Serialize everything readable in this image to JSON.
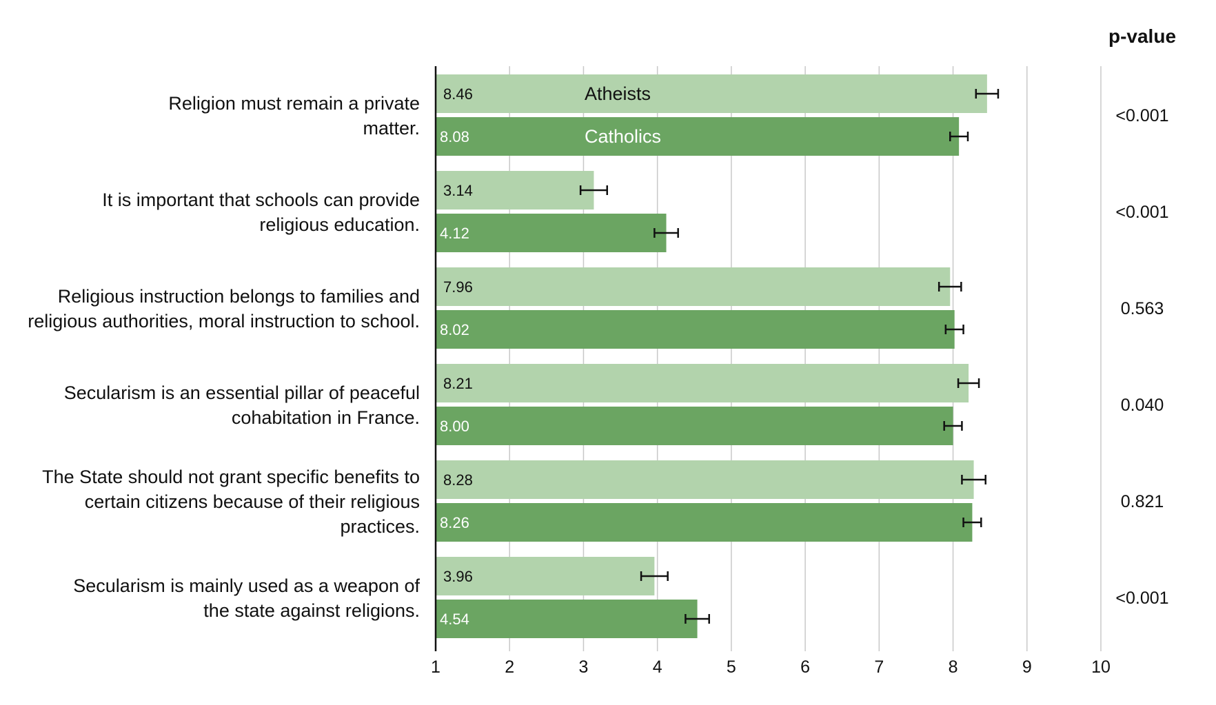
{
  "chart_data": {
    "type": "bar",
    "orientation": "horizontal",
    "title": "",
    "xlabel": "",
    "ylabel": "",
    "xlim": [
      1,
      10
    ],
    "x_ticks": [
      1,
      2,
      3,
      4,
      5,
      6,
      7,
      8,
      9,
      10
    ],
    "grid": "vertical",
    "legend": "inside-first-bars",
    "categories": [
      [
        "Religion must remain a private",
        "matter."
      ],
      [
        "It is important that schools can provide",
        "religious education."
      ],
      [
        "Religious instruction belongs to families and",
        "religious authorities, moral instruction to school."
      ],
      [
        "Secularism is an essential pillar of peaceful",
        "cohabitation in France."
      ],
      [
        "The State should not grant specific benefits to",
        "certain citizens because of their religious",
        "practices."
      ],
      [
        "Secularism is mainly used as a weapon of",
        "the state against religions."
      ]
    ],
    "series": [
      {
        "name": "Atheists",
        "color": "#b2d3ac",
        "label_color": "#111111",
        "values": [
          8.46,
          3.14,
          7.96,
          8.21,
          8.28,
          3.96
        ],
        "value_labels": [
          "8.46",
          "3.14",
          "7.96",
          "8.21",
          "8.28",
          "3.96"
        ],
        "error": [
          0.15,
          0.18,
          0.15,
          0.14,
          0.16,
          0.18
        ]
      },
      {
        "name": "Catholics",
        "color": "#6ba562",
        "label_color": "#ffffff",
        "values": [
          8.08,
          4.12,
          8.02,
          8.0,
          8.26,
          4.54
        ],
        "value_labels": [
          "8.08",
          "4.12",
          "8.02",
          "8.00",
          "8.26",
          "4.54"
        ],
        "error": [
          0.12,
          0.16,
          0.12,
          0.12,
          0.12,
          0.16
        ]
      }
    ],
    "p_value": {
      "header": "p-value",
      "values": [
        "<0.001",
        "<0.001",
        "0.563",
        "0.040",
        "0.821",
        "<0.001"
      ]
    }
  },
  "colors": {
    "axis": "#111111",
    "grid": "#c8c8c8",
    "text": "#111111"
  }
}
